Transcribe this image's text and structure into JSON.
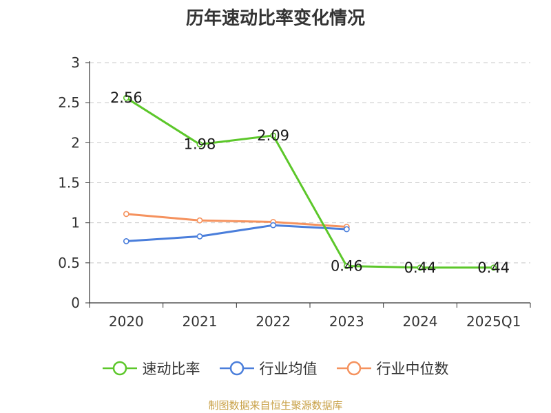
{
  "chart_data": {
    "type": "line",
    "title": "历年速动比率变化情况",
    "categories": [
      "2020",
      "2021",
      "2022",
      "2023",
      "2024",
      "2025Q1"
    ],
    "ylim": [
      0,
      3
    ],
    "yticks": [
      "0",
      "0.5",
      "1",
      "1.5",
      "2",
      "2.5",
      "3"
    ],
    "ytick_values": [
      0,
      0.5,
      1,
      1.5,
      2,
      2.5,
      3
    ],
    "grid": true,
    "legend_position": "bottom",
    "series": [
      {
        "name": "速动比率",
        "color": "#5cc72a",
        "values": [
          2.56,
          1.98,
          2.09,
          0.46,
          0.44,
          0.44
        ],
        "labels": [
          "2.56",
          "1.98",
          "2.09",
          "0.46",
          "0.44",
          "0.44"
        ],
        "show_labels": true
      },
      {
        "name": "行业均值",
        "color": "#4a7edb",
        "values": [
          0.77,
          0.83,
          0.97,
          0.92,
          null,
          null
        ],
        "show_labels": false
      },
      {
        "name": "行业中位数",
        "color": "#f5925e",
        "values": [
          1.11,
          1.03,
          1.01,
          0.95,
          null,
          null
        ],
        "show_labels": false
      }
    ]
  },
  "source": "制图数据来自恒生聚源数据库"
}
